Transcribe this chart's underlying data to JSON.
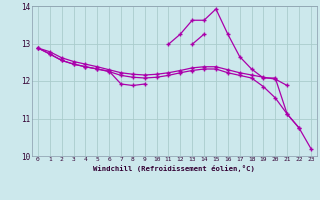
{
  "xlabel": "Windchill (Refroidissement éolien,°C)",
  "background_color": "#cce8ec",
  "grid_color": "#aacccc",
  "line_color": "#aa00aa",
  "x": [
    0,
    1,
    2,
    3,
    4,
    5,
    6,
    7,
    8,
    9,
    10,
    11,
    12,
    13,
    14,
    15,
    16,
    17,
    18,
    19,
    20,
    21,
    22,
    23
  ],
  "series1": [
    12.88,
    12.78,
    12.62,
    12.52,
    12.45,
    12.38,
    12.3,
    12.22,
    12.18,
    12.16,
    12.18,
    12.22,
    12.28,
    12.35,
    12.38,
    12.38,
    12.3,
    12.22,
    12.16,
    12.1,
    12.05,
    11.88,
    null,
    null
  ],
  "series2": [
    12.88,
    12.72,
    12.55,
    12.45,
    12.38,
    12.32,
    12.26,
    11.92,
    11.88,
    11.92,
    null,
    null,
    null,
    12.98,
    13.25,
    null,
    null,
    null,
    null,
    null,
    null,
    null,
    null,
    null
  ],
  "series3": [
    null,
    null,
    null,
    null,
    null,
    null,
    null,
    null,
    null,
    null,
    null,
    12.98,
    13.25,
    13.62,
    13.62,
    13.92,
    13.25,
    12.65,
    12.32,
    12.08,
    12.08,
    11.12,
    10.75,
    null
  ],
  "series4": [
    12.88,
    12.72,
    12.55,
    12.45,
    12.38,
    12.32,
    12.25,
    12.15,
    12.1,
    12.08,
    12.1,
    12.15,
    12.22,
    12.28,
    12.32,
    12.32,
    12.22,
    12.15,
    12.08,
    11.85,
    11.55,
    11.12,
    10.75,
    10.2
  ],
  "ylim": [
    10,
    14
  ],
  "yticks": [
    10,
    11,
    12,
    13,
    14
  ],
  "xlim": [
    -0.5,
    23.5
  ]
}
